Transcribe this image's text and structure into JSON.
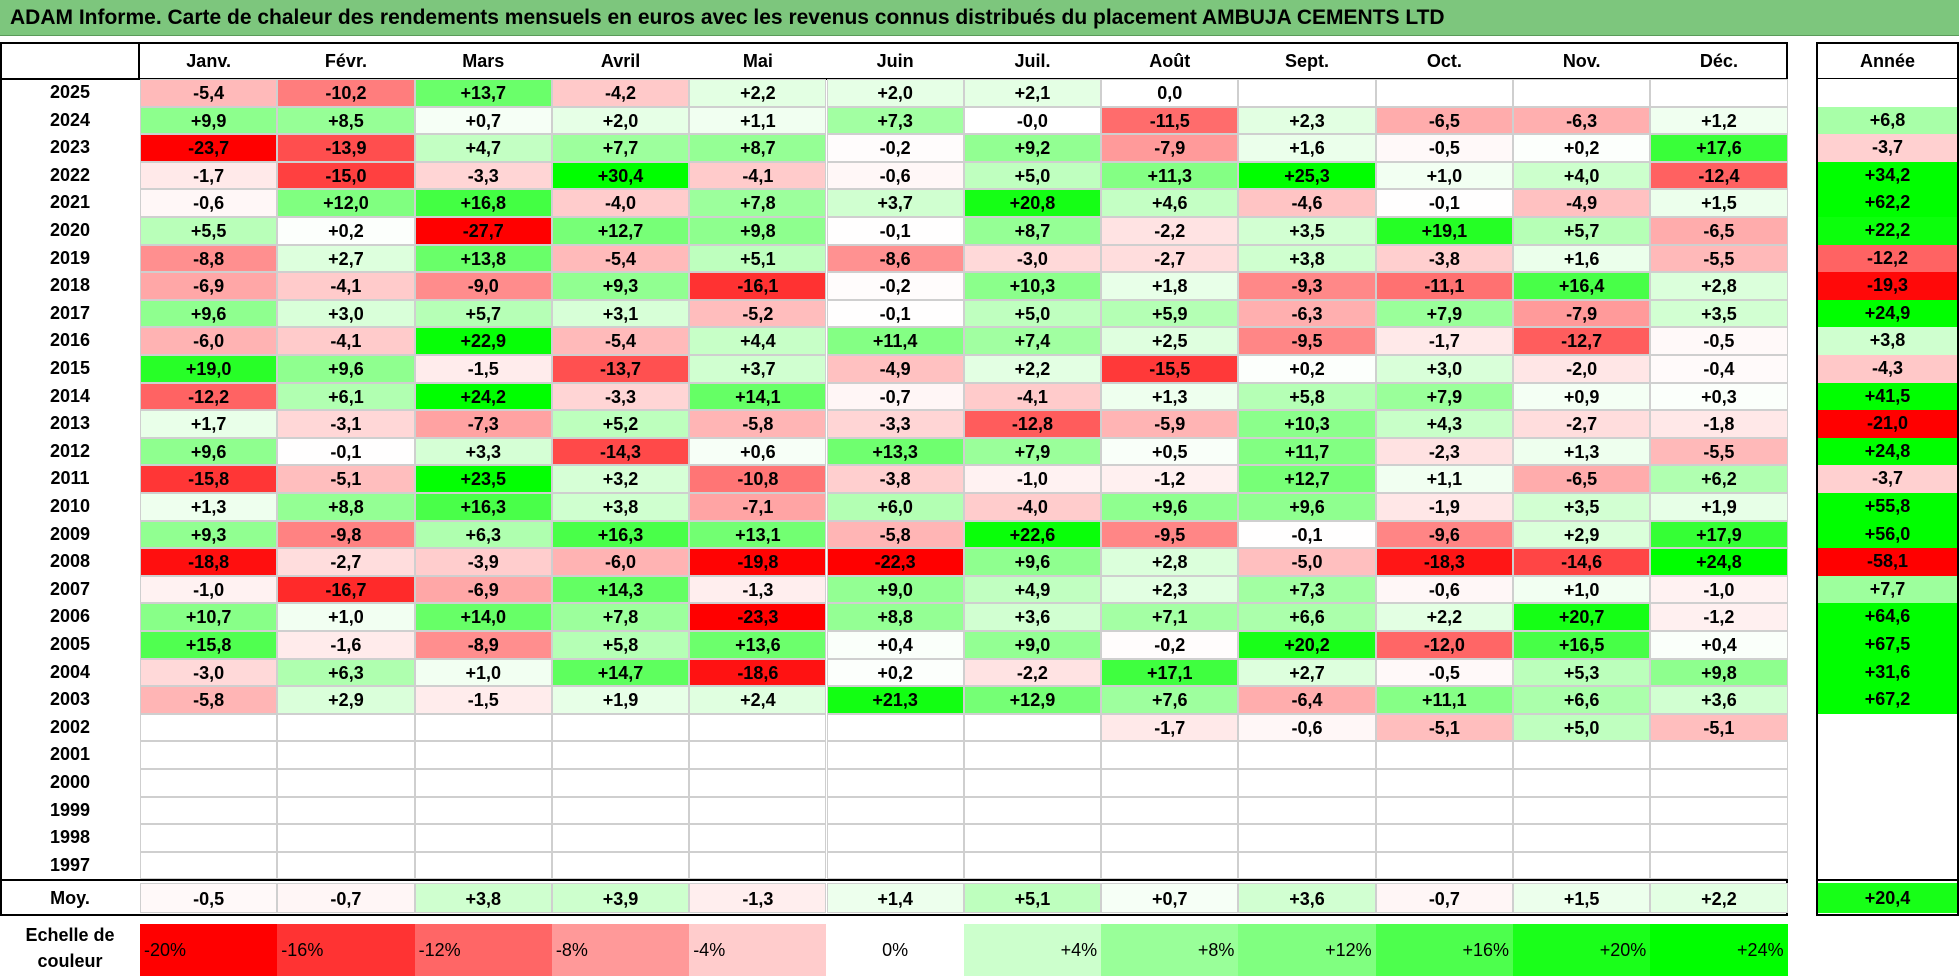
{
  "chart_data": {
    "type": "heatmap",
    "title": "ADAM Informe. Carte de chaleur des rendements mensuels en euros avec les revenus connus distribués du placement AMBUJA CEMENTS LTD",
    "months": [
      "Janv.",
      "Févr.",
      "Mars",
      "Avril",
      "Mai",
      "Juin",
      "Juil.",
      "Août",
      "Sept.",
      "Oct.",
      "Nov.",
      "Déc."
    ],
    "year_header": "Année",
    "rows": [
      {
        "year": "2025",
        "values": [
          "-5,4",
          "-10,2",
          "+13,7",
          "-4,2",
          "+2,2",
          "+2,0",
          "+2,1",
          "0,0",
          "",
          "",
          "",
          ""
        ],
        "annual": ""
      },
      {
        "year": "2024",
        "values": [
          "+9,9",
          "+8,5",
          "+0,7",
          "+2,0",
          "+1,1",
          "+7,3",
          "-0,0",
          "-11,5",
          "+2,3",
          "-6,5",
          "-6,3",
          "+1,2"
        ],
        "annual": "+6,8"
      },
      {
        "year": "2023",
        "values": [
          "-23,7",
          "-13,9",
          "+4,7",
          "+7,7",
          "+8,7",
          "-0,2",
          "+9,2",
          "-7,9",
          "+1,6",
          "-0,5",
          "+0,2",
          "+17,6"
        ],
        "annual": "-3,7"
      },
      {
        "year": "2022",
        "values": [
          "-1,7",
          "-15,0",
          "-3,3",
          "+30,4",
          "-4,1",
          "-0,6",
          "+5,0",
          "+11,3",
          "+25,3",
          "+1,0",
          "+4,0",
          "-12,4"
        ],
        "annual": "+34,2"
      },
      {
        "year": "2021",
        "values": [
          "-0,6",
          "+12,0",
          "+16,8",
          "-4,0",
          "+7,8",
          "+3,7",
          "+20,8",
          "+4,6",
          "-4,6",
          "-0,1",
          "-4,9",
          "+1,5"
        ],
        "annual": "+62,2"
      },
      {
        "year": "2020",
        "values": [
          "+5,5",
          "+0,2",
          "-27,7",
          "+12,7",
          "+9,8",
          "-0,1",
          "+8,7",
          "-2,2",
          "+3,5",
          "+19,1",
          "+5,7",
          "-6,5"
        ],
        "annual": "+22,2"
      },
      {
        "year": "2019",
        "values": [
          "-8,8",
          "+2,7",
          "+13,8",
          "-5,4",
          "+5,1",
          "-8,6",
          "-3,0",
          "-2,7",
          "+3,8",
          "-3,8",
          "+1,6",
          "-5,5"
        ],
        "annual": "-12,2"
      },
      {
        "year": "2018",
        "values": [
          "-6,9",
          "-4,1",
          "-9,0",
          "+9,3",
          "-16,1",
          "-0,2",
          "+10,3",
          "+1,8",
          "-9,3",
          "-11,1",
          "+16,4",
          "+2,8"
        ],
        "annual": "-19,3"
      },
      {
        "year": "2017",
        "values": [
          "+9,6",
          "+3,0",
          "+5,7",
          "+3,1",
          "-5,2",
          "-0,1",
          "+5,0",
          "+5,9",
          "-6,3",
          "+7,9",
          "-7,9",
          "+3,5"
        ],
        "annual": "+24,9"
      },
      {
        "year": "2016",
        "values": [
          "-6,0",
          "-4,1",
          "+22,9",
          "-5,4",
          "+4,4",
          "+11,4",
          "+7,4",
          "+2,5",
          "-9,5",
          "-1,7",
          "-12,7",
          "-0,5"
        ],
        "annual": "+3,8"
      },
      {
        "year": "2015",
        "values": [
          "+19,0",
          "+9,6",
          "-1,5",
          "-13,7",
          "+3,7",
          "-4,9",
          "+2,2",
          "-15,5",
          "+0,2",
          "+3,0",
          "-2,0",
          "-0,4"
        ],
        "annual": "-4,3"
      },
      {
        "year": "2014",
        "values": [
          "-12,2",
          "+6,1",
          "+24,2",
          "-3,3",
          "+14,1",
          "-0,7",
          "-4,1",
          "+1,3",
          "+5,8",
          "+7,9",
          "+0,9",
          "+0,3"
        ],
        "annual": "+41,5"
      },
      {
        "year": "2013",
        "values": [
          "+1,7",
          "-3,1",
          "-7,3",
          "+5,2",
          "-5,8",
          "-3,3",
          "-12,8",
          "-5,9",
          "+10,3",
          "+4,3",
          "-2,7",
          "-1,8"
        ],
        "annual": "-21,0"
      },
      {
        "year": "2012",
        "values": [
          "+9,6",
          "-0,1",
          "+3,3",
          "-14,3",
          "+0,6",
          "+13,3",
          "+7,9",
          "+0,5",
          "+11,7",
          "-2,3",
          "+1,3",
          "-5,5"
        ],
        "annual": "+24,8"
      },
      {
        "year": "2011",
        "values": [
          "-15,8",
          "-5,1",
          "+23,5",
          "+3,2",
          "-10,8",
          "-3,8",
          "-1,0",
          "-1,2",
          "+12,7",
          "+1,1",
          "-6,5",
          "+6,2"
        ],
        "annual": "-3,7"
      },
      {
        "year": "2010",
        "values": [
          "+1,3",
          "+8,8",
          "+16,3",
          "+3,8",
          "-7,1",
          "+6,0",
          "-4,0",
          "+9,6",
          "+9,6",
          "-1,9",
          "+3,5",
          "+1,9"
        ],
        "annual": "+55,8"
      },
      {
        "year": "2009",
        "values": [
          "+9,3",
          "-9,8",
          "+6,3",
          "+16,3",
          "+13,1",
          "-5,8",
          "+22,6",
          "-9,5",
          "-0,1",
          "-9,6",
          "+2,9",
          "+17,9"
        ],
        "annual": "+56,0"
      },
      {
        "year": "2008",
        "values": [
          "-18,8",
          "-2,7",
          "-3,9",
          "-6,0",
          "-19,8",
          "-22,3",
          "+9,6",
          "+2,8",
          "-5,0",
          "-18,3",
          "-14,6",
          "+24,8"
        ],
        "annual": "-58,1"
      },
      {
        "year": "2007",
        "values": [
          "-1,0",
          "-16,7",
          "-6,9",
          "+14,3",
          "-1,3",
          "+9,0",
          "+4,9",
          "+2,3",
          "+7,3",
          "-0,6",
          "+1,0",
          "-1,0"
        ],
        "annual": "+7,7"
      },
      {
        "year": "2006",
        "values": [
          "+10,7",
          "+1,0",
          "+14,0",
          "+7,8",
          "-23,3",
          "+8,8",
          "+3,6",
          "+7,1",
          "+6,6",
          "+2,2",
          "+20,7",
          "-1,2"
        ],
        "annual": "+64,6"
      },
      {
        "year": "2005",
        "values": [
          "+15,8",
          "-1,6",
          "-8,9",
          "+5,8",
          "+13,6",
          "+0,4",
          "+9,0",
          "-0,2",
          "+20,2",
          "-12,0",
          "+16,5",
          "+0,4"
        ],
        "annual": "+67,5"
      },
      {
        "year": "2004",
        "values": [
          "-3,0",
          "+6,3",
          "+1,0",
          "+14,7",
          "-18,6",
          "+0,2",
          "-2,2",
          "+17,1",
          "+2,7",
          "-0,5",
          "+5,3",
          "+9,8"
        ],
        "annual": "+31,6"
      },
      {
        "year": "2003",
        "values": [
          "-5,8",
          "+2,9",
          "-1,5",
          "+1,9",
          "+2,4",
          "+21,3",
          "+12,9",
          "+7,6",
          "-6,4",
          "+11,1",
          "+6,6",
          "+3,6"
        ],
        "annual": "+67,2"
      },
      {
        "year": "2002",
        "values": [
          "",
          "",
          "",
          "",
          "",
          "",
          "",
          "-1,7",
          "-0,6",
          "-5,1",
          "+5,0",
          "-5,1"
        ],
        "annual": ""
      },
      {
        "year": "2001",
        "values": [
          "",
          "",
          "",
          "",
          "",
          "",
          "",
          "",
          "",
          "",
          "",
          ""
        ],
        "annual": ""
      },
      {
        "year": "2000",
        "values": [
          "",
          "",
          "",
          "",
          "",
          "",
          "",
          "",
          "",
          "",
          "",
          ""
        ],
        "annual": ""
      },
      {
        "year": "1999",
        "values": [
          "",
          "",
          "",
          "",
          "",
          "",
          "",
          "",
          "",
          "",
          "",
          ""
        ],
        "annual": ""
      },
      {
        "year": "1998",
        "values": [
          "",
          "",
          "",
          "",
          "",
          "",
          "",
          "",
          "",
          "",
          "",
          ""
        ],
        "annual": ""
      },
      {
        "year": "1997",
        "values": [
          "",
          "",
          "",
          "",
          "",
          "",
          "",
          "",
          "",
          "",
          "",
          ""
        ],
        "annual": ""
      }
    ],
    "average": {
      "label": "Moy.",
      "values": [
        "-0,5",
        "-0,7",
        "+3,8",
        "+3,9",
        "-1,3",
        "+1,4",
        "+5,1",
        "+0,7",
        "+3,6",
        "-0,7",
        "+1,5",
        "+2,2"
      ],
      "annual": "+20,4"
    },
    "color_scale": {
      "label": "Echelle de couleur",
      "stops": [
        {
          "label": "-20%",
          "value": -20,
          "color": "#ff0000",
          "align": "left"
        },
        {
          "label": "-16%",
          "value": -16,
          "color": "#ff3333",
          "align": "left"
        },
        {
          "label": "-12%",
          "value": -12,
          "color": "#ff6666",
          "align": "left"
        },
        {
          "label": "-8%",
          "value": -8,
          "color": "#ff9999",
          "align": "left"
        },
        {
          "label": "-4%",
          "value": -4,
          "color": "#ffcccc",
          "align": "left"
        },
        {
          "label": "0%",
          "value": 0,
          "color": "#ffffff",
          "align": "center"
        },
        {
          "label": "+4%",
          "value": 4,
          "color": "#ccffcc",
          "align": "right"
        },
        {
          "label": "+8%",
          "value": 8,
          "color": "#99ff99",
          "align": "right"
        },
        {
          "label": "+12%",
          "value": 12,
          "color": "#80ff80",
          "align": "right"
        },
        {
          "label": "+16%",
          "value": 16,
          "color": "#4dff4d",
          "align": "right"
        },
        {
          "label": "+20%",
          "value": 20,
          "color": "#1aff1a",
          "align": "right"
        },
        {
          "label": "+24%",
          "value": 24,
          "color": "#00ff00",
          "align": "right"
        }
      ]
    }
  }
}
